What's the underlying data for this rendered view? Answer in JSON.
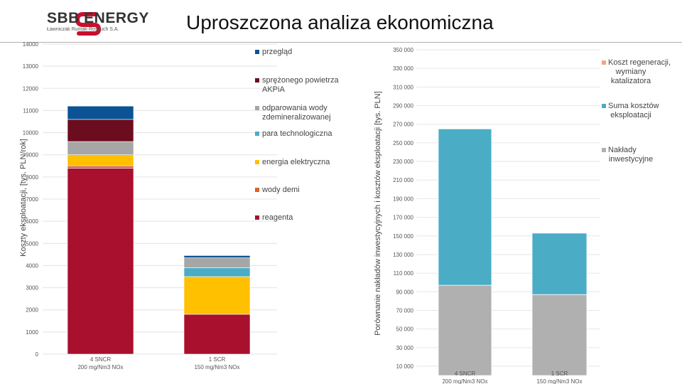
{
  "header": {
    "logo_text": "SBB ENERGY",
    "logo_subtitle": "Ławniczak Rumak-Roszuch S.A.",
    "title": "Uproszczona analiza ekonomiczna",
    "logo_color": "#c8102e"
  },
  "chart_data": [
    {
      "type": "bar",
      "stacked": true,
      "ylabel": "Koszty eksploatacji, [tys. PLN/rok]",
      "ylim": [
        0,
        14000
      ],
      "yticks": [
        "0",
        "1000",
        "2000",
        "3000",
        "4000",
        "5000",
        "6000",
        "7000",
        "8000",
        "9000",
        "10000",
        "11000",
        "12000",
        "13000",
        "14000"
      ],
      "categories": [
        [
          "4 SNCR",
          "200 mg/Nm3 NOx"
        ],
        [
          "1 SCR",
          "150 mg/Nm3 NOx"
        ]
      ],
      "legend_position": "right",
      "series": [
        {
          "name": "reagenta",
          "color": "#a8102e",
          "values": [
            8400,
            1800
          ]
        },
        {
          "name": "wody demi",
          "color": "#d8642a",
          "values": [
            100,
            0
          ]
        },
        {
          "name": "energia elektryczna",
          "color": "#ffc000",
          "values": [
            500,
            1700
          ]
        },
        {
          "name": "para technologiczna",
          "color": "#4bacc6",
          "values": [
            0,
            400
          ]
        },
        {
          "name": "odparowania wody zdemineralizowanej",
          "color": "#a6a6a6",
          "values": [
            600,
            450
          ]
        },
        {
          "name": "sprężonego powietrza AKPiA",
          "color": "#6b0d1e",
          "values": [
            1000,
            0
          ]
        },
        {
          "name": "przegląd",
          "color": "#0b5394",
          "values": [
            600,
            100
          ]
        }
      ]
    },
    {
      "type": "bar",
      "stacked": true,
      "ylabel": "Porównanie nakładów inwestycyjnych i kosztów eksploatacji [tys. PLN]",
      "ylim": [
        10000,
        350000
      ],
      "yticks": [
        "10 000",
        "30 000",
        "50 000",
        "70 000",
        "90 000",
        "110 000",
        "130 000",
        "150 000",
        "170 000",
        "190 000",
        "210 000",
        "230 000",
        "250 000",
        "270 000",
        "290 000",
        "310 000",
        "330 000",
        "350 000"
      ],
      "categories": [
        [
          "4 SNCR",
          "200 mg/Nm3 NOx"
        ],
        [
          "1 SCR",
          "150 mg/Nm3 NOx"
        ]
      ],
      "legend_position": "right",
      "series": [
        {
          "name": "Nakłady inwestycyjne",
          "color": "#b0b0b0",
          "values": [
            97000,
            87000
          ]
        },
        {
          "name": "Suma kosztów eksploatacji",
          "color": "#4bacc6",
          "values": [
            168000,
            66000
          ]
        },
        {
          "name": "Koszt regeneracji, wymiany katalizatora",
          "color": "#f4a582",
          "values": [
            0,
            0
          ]
        }
      ]
    }
  ]
}
